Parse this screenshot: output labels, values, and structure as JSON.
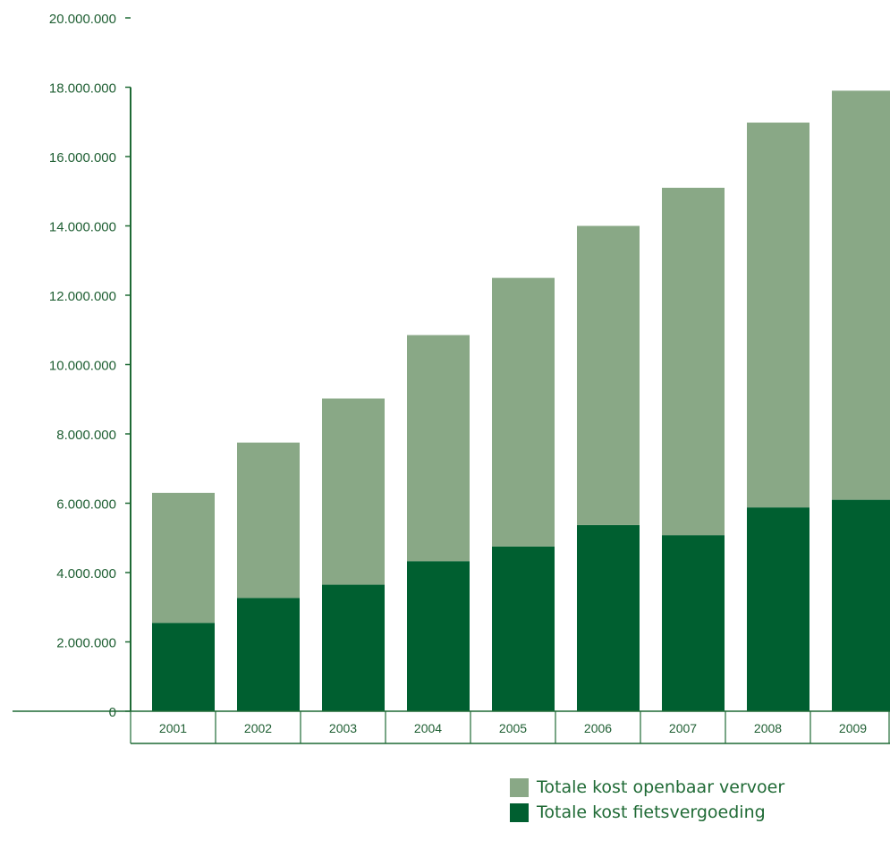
{
  "colors": {
    "openbaar_vervoer": "#89a886",
    "fietsvergoeding": "#005f30",
    "axis": "#1f6a35",
    "text": "#1f5f33"
  },
  "chart_data": {
    "type": "bar",
    "stacked": true,
    "categories": [
      "2001",
      "2002",
      "2003",
      "2004",
      "2005",
      "2006",
      "2007",
      "2008",
      "2009"
    ],
    "series": [
      {
        "name": "Totale kost fietsvergoeding",
        "color": "#005f30",
        "values": [
          2550000,
          3270000,
          3650000,
          4330000,
          4750000,
          5370000,
          5080000,
          5880000,
          6100000
        ]
      },
      {
        "name": "Totale kost openbaar vervoer",
        "color": "#89a886",
        "values": [
          3750000,
          4480000,
          5370000,
          6520000,
          7750000,
          8630000,
          10020000,
          11100000,
          11800000
        ]
      }
    ],
    "yticks": [
      "0",
      "2.000.000",
      "4.000.000",
      "6.000.000",
      "8.000.000",
      "10.000.000",
      "12.000.000",
      "14.000.000",
      "16.000.000",
      "18.000.000",
      "20.000.000"
    ],
    "ylim": [
      0,
      20000000
    ],
    "grid": false,
    "legend_position": "bottom-right",
    "title": "",
    "xlabel": "",
    "ylabel": ""
  },
  "legend": {
    "items": [
      {
        "label": "Totale kost openbaar vervoer",
        "color": "#89a886"
      },
      {
        "label": "Totale kost fietsvergoeding",
        "color": "#005f30"
      }
    ]
  }
}
